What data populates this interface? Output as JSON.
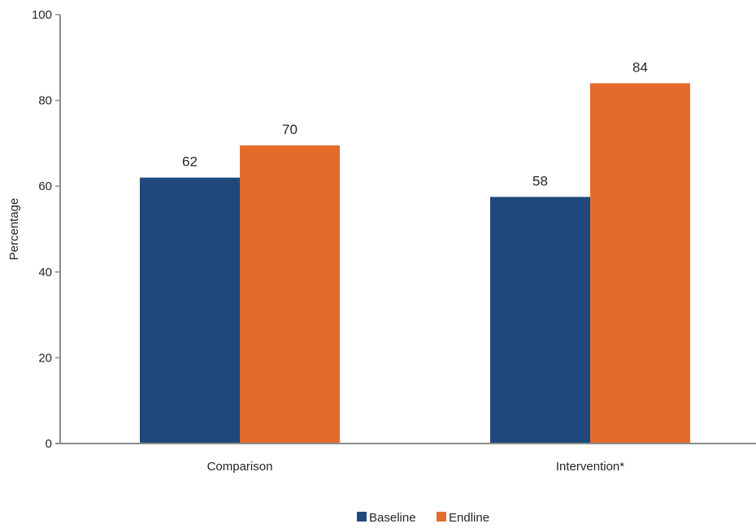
{
  "chart_data": {
    "type": "bar",
    "categories": [
      "Comparison",
      "Intervention*"
    ],
    "series": [
      {
        "name": "Baseline",
        "values": [
          62,
          57.5
        ],
        "labels": [
          "62",
          "58"
        ],
        "color": "#1f497d"
      },
      {
        "name": "Endline",
        "values": [
          69.5,
          84
        ],
        "labels": [
          "70",
          "84"
        ],
        "color": "#e36c2a"
      }
    ],
    "title": "",
    "xlabel": "",
    "ylabel": "Percentage",
    "ylim": [
      0,
      100
    ],
    "yticks": [
      "0",
      "20",
      "40",
      "60",
      "80",
      "100"
    ],
    "grid": false,
    "legend": "bottom-center",
    "axis_color": "#8c8c8c"
  }
}
